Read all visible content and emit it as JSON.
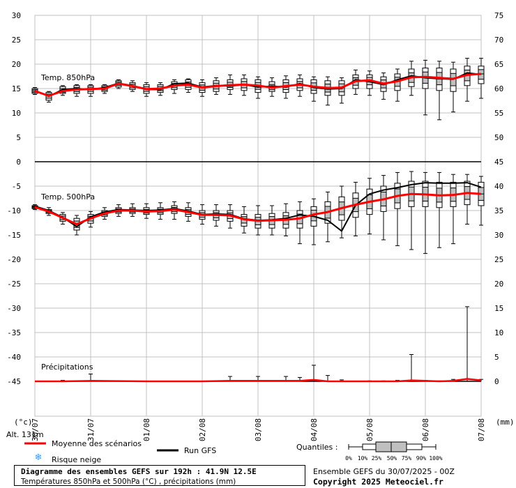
{
  "chart_data": {
    "type": "box-line",
    "x_labels": [
      "30/07",
      "31/07",
      "01/08",
      "02/08",
      "03/08",
      "04/08",
      "05/08",
      "06/08",
      "07/08"
    ],
    "left_ticks": [
      "30",
      "25",
      "20",
      "15",
      "10",
      "5",
      "0",
      "-5",
      "-10",
      "-15",
      "-20",
      "-25",
      "-30",
      "-35",
      "-40",
      "-45"
    ],
    "right_ticks": [
      "75",
      "70",
      "65",
      "60",
      "55",
      "50",
      "45",
      "40",
      "35",
      "30",
      "25",
      "20",
      "15",
      "10",
      "5",
      "0"
    ],
    "left_unit": "(°c)",
    "right_unit": "(mm)",
    "altitude_label": "Alt. 131m",
    "series": [
      {
        "name": "Temp. 850hPa",
        "x_hours": [
          0,
          6,
          12,
          18,
          24,
          30,
          36,
          42,
          48,
          54,
          60,
          66,
          72,
          78,
          84,
          90,
          96,
          102,
          108,
          114,
          120,
          126,
          132,
          138,
          144,
          150,
          156,
          162,
          168,
          174,
          180,
          186,
          192
        ],
        "mean": [
          14.5,
          13.5,
          14.5,
          14.8,
          14.9,
          15.0,
          16.0,
          15.5,
          14.9,
          15.0,
          15.6,
          15.8,
          15.2,
          15.5,
          15.7,
          15.8,
          15.6,
          15.2,
          15.5,
          15.8,
          15.4,
          15.1,
          15.2,
          16.5,
          16.7,
          16.0,
          16.5,
          17.3,
          17.4,
          17.2,
          17.0,
          17.8,
          18.0
        ],
        "gfs": [
          14.6,
          13.4,
          14.8,
          15.0,
          14.8,
          15.2,
          16.1,
          15.6,
          14.8,
          14.8,
          16.0,
          16.1,
          15.3,
          15.6,
          15.5,
          15.8,
          15.3,
          15.5,
          15.3,
          16.0,
          15.2,
          14.9,
          15.0,
          16.8,
          16.4,
          15.8,
          16.8,
          17.6,
          17.2,
          17.0,
          16.9,
          18.2,
          17.9
        ],
        "q10": [
          14.0,
          12.6,
          14.0,
          14.0,
          14.0,
          14.4,
          15.3,
          14.8,
          14.0,
          14.2,
          14.8,
          14.8,
          14.2,
          14.4,
          14.8,
          14.6,
          14.2,
          14.4,
          14.2,
          14.6,
          14.0,
          13.6,
          13.6,
          15.0,
          15.0,
          14.4,
          14.6,
          15.4,
          15.0,
          14.6,
          14.4,
          15.6,
          16.0
        ],
        "q90": [
          15.0,
          14.2,
          15.4,
          15.6,
          15.6,
          15.6,
          16.6,
          16.2,
          15.8,
          15.8,
          16.4,
          16.8,
          16.2,
          16.6,
          16.8,
          17.0,
          16.8,
          16.4,
          16.8,
          17.0,
          16.8,
          16.6,
          16.6,
          17.8,
          17.8,
          17.4,
          18.0,
          19.0,
          19.2,
          19.2,
          19.0,
          19.6,
          19.6
        ],
        "min": [
          13.8,
          12.2,
          13.6,
          13.4,
          13.4,
          14.0,
          15.0,
          14.4,
          13.4,
          13.6,
          14.0,
          14.2,
          13.4,
          13.8,
          13.8,
          13.6,
          13.0,
          13.4,
          13.0,
          13.4,
          12.4,
          11.6,
          12.0,
          13.8,
          13.6,
          12.8,
          12.4,
          13.6,
          9.6,
          8.6,
          10.2,
          12.4,
          13.0
        ],
        "max": [
          15.2,
          14.4,
          15.6,
          15.8,
          15.8,
          15.8,
          16.8,
          16.6,
          16.2,
          16.2,
          16.8,
          17.0,
          16.8,
          17.2,
          17.8,
          17.8,
          17.4,
          17.2,
          17.6,
          17.8,
          17.4,
          17.4,
          17.2,
          18.8,
          18.6,
          18.2,
          19.0,
          20.6,
          20.8,
          20.6,
          20.4,
          21.2,
          21.2
        ]
      },
      {
        "name": "Temp. 500hPa",
        "x_hours": [
          0,
          6,
          12,
          18,
          24,
          30,
          36,
          42,
          48,
          54,
          60,
          66,
          72,
          78,
          84,
          90,
          96,
          102,
          108,
          114,
          120,
          126,
          132,
          138,
          144,
          150,
          156,
          162,
          168,
          174,
          180,
          186,
          192
        ],
        "mean": [
          -9.3,
          -10.2,
          -11.5,
          -12.8,
          -11.6,
          -10.6,
          -10.0,
          -10.0,
          -10.2,
          -10.1,
          -9.8,
          -10.3,
          -10.9,
          -10.9,
          -11.0,
          -11.8,
          -12.1,
          -12.0,
          -11.9,
          -11.6,
          -10.8,
          -10.3,
          -9.5,
          -8.8,
          -8.2,
          -7.7,
          -7.0,
          -6.6,
          -6.7,
          -6.9,
          -6.8,
          -6.4,
          -6.6
        ],
        "gfs": [
          -9.1,
          -10.0,
          -11.4,
          -13.3,
          -11.3,
          -10.3,
          -9.8,
          -9.9,
          -10.0,
          -9.9,
          -9.6,
          -10.1,
          -10.8,
          -10.7,
          -10.8,
          -11.7,
          -12.0,
          -11.9,
          -11.6,
          -10.9,
          -11.2,
          -12.0,
          -14.2,
          -8.9,
          -6.6,
          -5.8,
          -5.3,
          -4.7,
          -4.3,
          -4.4,
          -4.4,
          -4.3,
          -5.2
        ],
        "q10": [
          -9.6,
          -10.6,
          -12.2,
          -14.0,
          -12.6,
          -11.2,
          -10.6,
          -10.6,
          -10.8,
          -10.8,
          -10.6,
          -11.2,
          -11.8,
          -12.0,
          -12.2,
          -13.2,
          -13.6,
          -13.6,
          -13.6,
          -13.6,
          -13.2,
          -12.6,
          -12.0,
          -11.4,
          -10.8,
          -10.2,
          -9.6,
          -9.2,
          -9.2,
          -9.4,
          -9.2,
          -8.8,
          -9.0
        ],
        "q90": [
          -9.0,
          -9.8,
          -10.8,
          -11.6,
          -10.8,
          -10.0,
          -9.4,
          -9.4,
          -9.4,
          -9.4,
          -9.0,
          -9.4,
          -10.0,
          -10.0,
          -10.0,
          -10.8,
          -10.8,
          -10.6,
          -10.4,
          -10.0,
          -9.2,
          -8.2,
          -7.2,
          -6.4,
          -5.6,
          -5.0,
          -4.4,
          -4.0,
          -4.0,
          -4.2,
          -4.2,
          -4.0,
          -4.2
        ],
        "min": [
          -9.8,
          -11.0,
          -12.8,
          -15.0,
          -13.4,
          -11.8,
          -11.2,
          -11.2,
          -11.6,
          -11.8,
          -11.8,
          -12.2,
          -12.8,
          -13.2,
          -13.6,
          -14.6,
          -15.0,
          -15.0,
          -15.2,
          -16.8,
          -17.0,
          -16.4,
          -15.6,
          -15.2,
          -14.8,
          -16.0,
          -17.2,
          -18.0,
          -18.8,
          -17.6,
          -16.8,
          -12.8,
          -13.0
        ],
        "max": [
          -8.8,
          -9.4,
          -10.4,
          -11.0,
          -10.2,
          -9.4,
          -8.8,
          -8.6,
          -8.6,
          -8.4,
          -8.2,
          -8.4,
          -8.8,
          -8.8,
          -8.8,
          -9.2,
          -9.0,
          -9.0,
          -8.6,
          -8.2,
          -7.6,
          -6.2,
          -5.0,
          -4.2,
          -3.4,
          -2.8,
          -2.2,
          -2.0,
          -2.2,
          -2.2,
          -2.6,
          -2.6,
          -3.0
        ]
      },
      {
        "name": "Précipitations",
        "x_hours": [
          0,
          12,
          24,
          48,
          60,
          72,
          84,
          96,
          108,
          114,
          120,
          126,
          132,
          138,
          144,
          150,
          156,
          162,
          168,
          174,
          180,
          186,
          192
        ],
        "mean_mm": [
          0,
          0,
          0.1,
          0,
          0,
          0,
          0.1,
          0.1,
          0.1,
          0.1,
          0.3,
          0,
          0,
          0,
          0,
          0,
          0,
          0.2,
          0.1,
          0,
          0.1,
          0.5,
          0.2
        ],
        "max_mm": [
          0,
          0.2,
          1.5,
          0,
          0,
          0,
          1.0,
          1.0,
          1.0,
          0.8,
          3.3,
          1.2,
          0.3,
          0,
          0.1,
          0.1,
          0.2,
          5.5,
          0.2,
          0.1,
          0.4,
          15.3,
          0.4
        ]
      }
    ],
    "legend": {
      "mean": "Moyenne des scénarios",
      "gfs": "Run GFS",
      "snow": "Risque neige",
      "quantiles_title": "Quantiles :",
      "quantiles": [
        "0%",
        "10%",
        "25%",
        "50%",
        "75%",
        "90%",
        "100%"
      ]
    },
    "colors": {
      "mean": "#ff0000",
      "gfs": "#000000",
      "box": "#c0c0c0",
      "grid": "#c0c0c0",
      "snow": "#3399ff"
    }
  },
  "footer": {
    "title": "Diagramme des ensembles GEFS sur 192h : 41.9N 12.5E",
    "subtitle": "Températures 850hPa et 500hPa (°C) , précipitations (mm)",
    "run": "Ensemble GEFS du 30/07/2025 - 00Z",
    "copyright": "Copyright 2025 Meteociel.fr"
  }
}
